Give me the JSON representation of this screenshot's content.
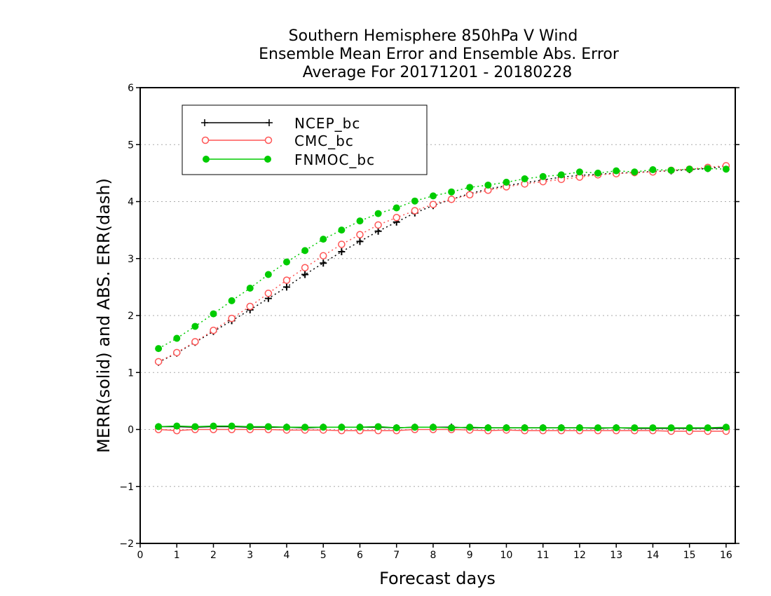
{
  "chart_data": {
    "type": "line",
    "title": [
      "Southern Hemisphere 850hPa V Wind",
      "Ensemble Mean Error and Ensemble Abs. Error",
      "Average For 20171201 - 20180228"
    ],
    "xlabel": "Forecast days",
    "ylabel": "MERR(solid) and ABS. ERR(dash)",
    "xlim": [
      0,
      16.25
    ],
    "ylim": [
      -2,
      6
    ],
    "xticks": [
      "0",
      "1",
      "2",
      "3",
      "4",
      "5",
      "6",
      "7",
      "8",
      "9",
      "10",
      "11",
      "12",
      "13",
      "14",
      "15",
      "16"
    ],
    "yticks": [
      "6",
      "5",
      "4",
      "3",
      "2",
      "1",
      "0",
      "-1",
      "-2"
    ],
    "grid": true,
    "legend_position": "top-left",
    "x": [
      0.5,
      1,
      1.5,
      2,
      2.5,
      3,
      3.5,
      4,
      4.5,
      5,
      5.5,
      6,
      6.5,
      7,
      7.5,
      8,
      8.5,
      9,
      9.5,
      10,
      10.5,
      11,
      11.5,
      12,
      12.5,
      13,
      13.5,
      14,
      14.5,
      15,
      15.5,
      16
    ],
    "series": [
      {
        "name": "NCEP_bc",
        "color": "#000000",
        "marker": "plus",
        "merr": [
          0.05,
          0.05,
          0.04,
          0.05,
          0.05,
          0.04,
          0.04,
          0.04,
          0.03,
          0.04,
          0.04,
          0.04,
          0.04,
          0.03,
          0.04,
          0.04,
          0.04,
          0.03,
          0.03,
          0.03,
          0.03,
          0.03,
          0.03,
          0.03,
          0.02,
          0.03,
          0.02,
          0.02,
          0.02,
          0.02,
          0.02,
          0.02
        ],
        "abs_err": [
          1.18,
          1.34,
          1.53,
          1.72,
          1.91,
          2.1,
          2.3,
          2.5,
          2.72,
          2.92,
          3.12,
          3.3,
          3.48,
          3.64,
          3.8,
          3.93,
          4.04,
          4.14,
          4.22,
          4.28,
          4.33,
          4.38,
          4.43,
          4.46,
          4.48,
          4.5,
          4.51,
          4.53,
          4.54,
          4.56,
          4.58,
          4.62
        ]
      },
      {
        "name": "CMC_bc",
        "color": "#ff5555",
        "marker": "circle-open",
        "merr": [
          0.0,
          -0.02,
          0.0,
          0.0,
          0.0,
          0.0,
          0.0,
          -0.01,
          -0.01,
          -0.01,
          -0.02,
          -0.02,
          -0.02,
          -0.02,
          0.0,
          0.0,
          0.0,
          -0.01,
          -0.02,
          -0.01,
          -0.02,
          -0.02,
          -0.02,
          -0.02,
          -0.02,
          -0.02,
          -0.02,
          -0.02,
          -0.03,
          -0.03,
          -0.03,
          -0.03
        ],
        "abs_err": [
          1.19,
          1.35,
          1.54,
          1.74,
          1.95,
          2.16,
          2.39,
          2.62,
          2.84,
          3.05,
          3.25,
          3.42,
          3.59,
          3.72,
          3.84,
          3.95,
          4.04,
          4.12,
          4.2,
          4.26,
          4.31,
          4.35,
          4.39,
          4.43,
          4.47,
          4.49,
          4.51,
          4.52,
          4.55,
          4.57,
          4.6,
          4.63
        ]
      },
      {
        "name": "FNMOC_bc",
        "color": "#00cc00",
        "marker": "circle-filled",
        "merr": [
          0.05,
          0.06,
          0.05,
          0.06,
          0.06,
          0.05,
          0.05,
          0.04,
          0.04,
          0.04,
          0.04,
          0.04,
          0.05,
          0.03,
          0.04,
          0.04,
          0.03,
          0.04,
          0.03,
          0.03,
          0.03,
          0.03,
          0.03,
          0.03,
          0.03,
          0.03,
          0.03,
          0.03,
          0.03,
          0.03,
          0.03,
          0.04
        ],
        "abs_err": [
          1.42,
          1.6,
          1.81,
          2.03,
          2.26,
          2.48,
          2.72,
          2.94,
          3.14,
          3.34,
          3.5,
          3.66,
          3.79,
          3.89,
          4.01,
          4.1,
          4.17,
          4.25,
          4.29,
          4.34,
          4.4,
          4.44,
          4.47,
          4.52,
          4.5,
          4.54,
          4.52,
          4.56,
          4.55,
          4.57,
          4.58,
          4.57
        ]
      }
    ]
  }
}
